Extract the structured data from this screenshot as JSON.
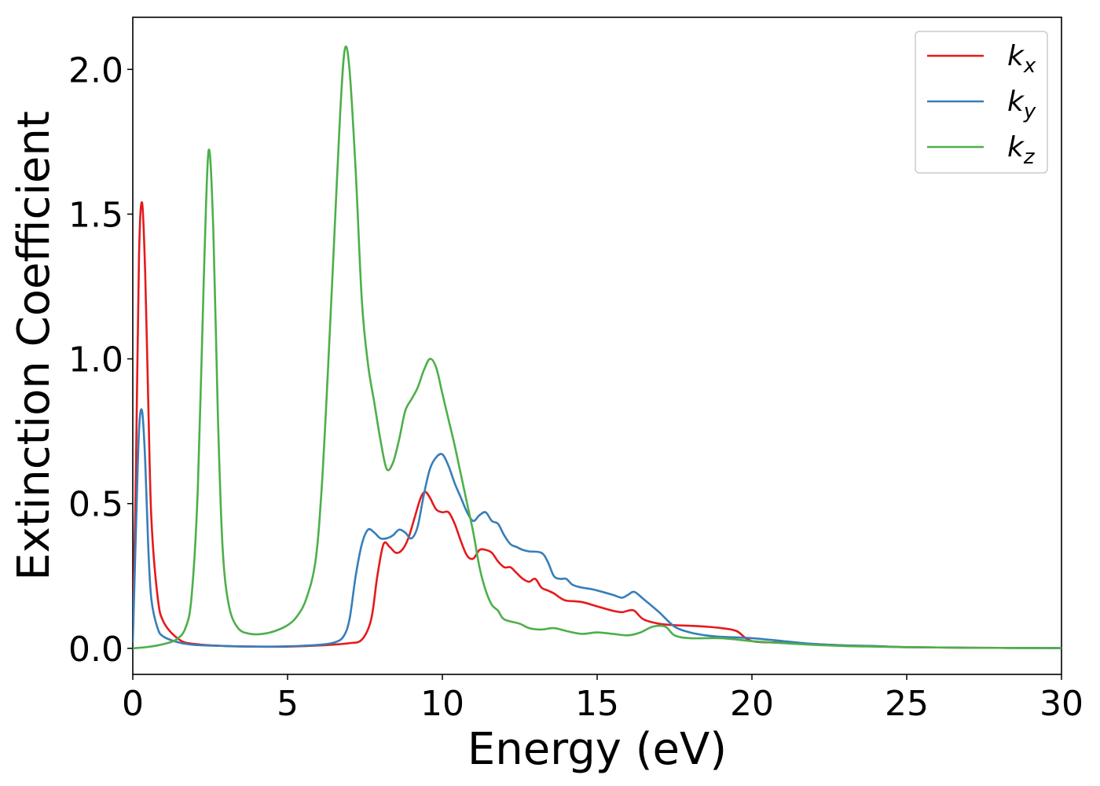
{
  "chart_data": {
    "type": "line",
    "xlabel": "Energy (eV)",
    "ylabel": "Extinction Coefficient",
    "xlim": [
      0,
      30
    ],
    "ylim": [
      -0.09,
      2.18
    ],
    "grid": false,
    "legend_position": "top-right",
    "x_ticks": [
      "0",
      "5",
      "10",
      "15",
      "20",
      "25",
      "30"
    ],
    "y_ticks": [
      "0.0",
      "0.5",
      "1.0",
      "1.5",
      "2.0"
    ],
    "series": [
      {
        "name": "k_x",
        "legend_main": "k",
        "legend_sub": "x",
        "color": "#e41a1c",
        "points": [
          [
            0,
            0.05
          ],
          [
            0.1,
            0.6
          ],
          [
            0.2,
            1.35
          ],
          [
            0.3,
            1.54
          ],
          [
            0.4,
            1.3
          ],
          [
            0.5,
            0.85
          ],
          [
            0.6,
            0.45
          ],
          [
            0.8,
            0.18
          ],
          [
            1.0,
            0.09
          ],
          [
            1.5,
            0.03
          ],
          [
            2.0,
            0.015
          ],
          [
            3.0,
            0.008
          ],
          [
            4.0,
            0.006
          ],
          [
            5.0,
            0.006
          ],
          [
            6.0,
            0.01
          ],
          [
            6.5,
            0.013
          ],
          [
            7.0,
            0.018
          ],
          [
            7.4,
            0.03
          ],
          [
            7.7,
            0.1
          ],
          [
            7.9,
            0.25
          ],
          [
            8.1,
            0.36
          ],
          [
            8.3,
            0.35
          ],
          [
            8.5,
            0.33
          ],
          [
            8.7,
            0.34
          ],
          [
            8.9,
            0.38
          ],
          [
            9.1,
            0.45
          ],
          [
            9.3,
            0.52
          ],
          [
            9.45,
            0.54
          ],
          [
            9.6,
            0.52
          ],
          [
            9.8,
            0.48
          ],
          [
            10.0,
            0.47
          ],
          [
            10.2,
            0.47
          ],
          [
            10.4,
            0.43
          ],
          [
            10.6,
            0.37
          ],
          [
            10.8,
            0.32
          ],
          [
            11.0,
            0.31
          ],
          [
            11.2,
            0.34
          ],
          [
            11.4,
            0.34
          ],
          [
            11.6,
            0.33
          ],
          [
            11.8,
            0.3
          ],
          [
            12.0,
            0.28
          ],
          [
            12.2,
            0.28
          ],
          [
            12.4,
            0.26
          ],
          [
            12.6,
            0.24
          ],
          [
            12.8,
            0.23
          ],
          [
            13.0,
            0.24
          ],
          [
            13.2,
            0.21
          ],
          [
            13.4,
            0.2
          ],
          [
            13.6,
            0.19
          ],
          [
            13.8,
            0.175
          ],
          [
            14.0,
            0.165
          ],
          [
            14.5,
            0.16
          ],
          [
            15.0,
            0.145
          ],
          [
            15.5,
            0.13
          ],
          [
            15.8,
            0.125
          ],
          [
            16.0,
            0.13
          ],
          [
            16.2,
            0.13
          ],
          [
            16.5,
            0.1
          ],
          [
            17.0,
            0.085
          ],
          [
            17.5,
            0.08
          ],
          [
            18.0,
            0.078
          ],
          [
            18.5,
            0.075
          ],
          [
            19.0,
            0.07
          ],
          [
            19.5,
            0.06
          ],
          [
            20.0,
            0.025
          ],
          [
            21.0,
            0.02
          ],
          [
            22.0,
            0.015
          ],
          [
            23.0,
            0.01
          ],
          [
            24.0,
            0.007
          ],
          [
            25.0,
            0.004
          ],
          [
            27.0,
            0.002
          ],
          [
            30.0,
            0.001
          ]
        ]
      },
      {
        "name": "k_y",
        "legend_main": "k",
        "legend_sub": "y",
        "color": "#377eb8",
        "points": [
          [
            0,
            0.02
          ],
          [
            0.1,
            0.4
          ],
          [
            0.2,
            0.75
          ],
          [
            0.3,
            0.82
          ],
          [
            0.4,
            0.65
          ],
          [
            0.5,
            0.35
          ],
          [
            0.6,
            0.17
          ],
          [
            0.8,
            0.07
          ],
          [
            1.0,
            0.04
          ],
          [
            1.5,
            0.02
          ],
          [
            2.0,
            0.012
          ],
          [
            3.0,
            0.008
          ],
          [
            4.0,
            0.006
          ],
          [
            5.0,
            0.007
          ],
          [
            6.0,
            0.012
          ],
          [
            6.5,
            0.02
          ],
          [
            6.8,
            0.04
          ],
          [
            7.0,
            0.1
          ],
          [
            7.2,
            0.25
          ],
          [
            7.4,
            0.36
          ],
          [
            7.6,
            0.41
          ],
          [
            7.8,
            0.4
          ],
          [
            8.0,
            0.38
          ],
          [
            8.2,
            0.38
          ],
          [
            8.4,
            0.39
          ],
          [
            8.6,
            0.41
          ],
          [
            8.8,
            0.4
          ],
          [
            9.0,
            0.38
          ],
          [
            9.2,
            0.42
          ],
          [
            9.4,
            0.53
          ],
          [
            9.6,
            0.62
          ],
          [
            9.8,
            0.66
          ],
          [
            10.0,
            0.67
          ],
          [
            10.2,
            0.63
          ],
          [
            10.4,
            0.57
          ],
          [
            10.6,
            0.52
          ],
          [
            10.8,
            0.47
          ],
          [
            11.0,
            0.44
          ],
          [
            11.2,
            0.46
          ],
          [
            11.4,
            0.47
          ],
          [
            11.6,
            0.44
          ],
          [
            11.8,
            0.43
          ],
          [
            12.0,
            0.39
          ],
          [
            12.2,
            0.36
          ],
          [
            12.4,
            0.35
          ],
          [
            12.6,
            0.34
          ],
          [
            12.8,
            0.335
          ],
          [
            13.2,
            0.33
          ],
          [
            13.4,
            0.3
          ],
          [
            13.6,
            0.25
          ],
          [
            13.8,
            0.24
          ],
          [
            14.0,
            0.24
          ],
          [
            14.2,
            0.22
          ],
          [
            14.5,
            0.21
          ],
          [
            14.8,
            0.205
          ],
          [
            15.0,
            0.2
          ],
          [
            15.5,
            0.185
          ],
          [
            15.8,
            0.175
          ],
          [
            16.0,
            0.185
          ],
          [
            16.2,
            0.195
          ],
          [
            16.5,
            0.17
          ],
          [
            17.0,
            0.125
          ],
          [
            17.5,
            0.075
          ],
          [
            18.0,
            0.055
          ],
          [
            18.5,
            0.045
          ],
          [
            19.0,
            0.04
          ],
          [
            20.0,
            0.035
          ],
          [
            21.0,
            0.025
          ],
          [
            22.0,
            0.015
          ],
          [
            23.0,
            0.01
          ],
          [
            24.0,
            0.008
          ],
          [
            25.0,
            0.004
          ],
          [
            27.0,
            0.002
          ],
          [
            30.0,
            0.001
          ]
        ]
      },
      {
        "name": "k_z",
        "legend_main": "k",
        "legend_sub": "z",
        "color": "#4daf4a",
        "points": [
          [
            0,
            0.0
          ],
          [
            0.5,
            0.005
          ],
          [
            1.0,
            0.015
          ],
          [
            1.4,
            0.03
          ],
          [
            1.7,
            0.07
          ],
          [
            1.9,
            0.18
          ],
          [
            2.1,
            0.55
          ],
          [
            2.3,
            1.3
          ],
          [
            2.45,
            1.72
          ],
          [
            2.6,
            1.45
          ],
          [
            2.75,
            0.8
          ],
          [
            2.9,
            0.35
          ],
          [
            3.1,
            0.15
          ],
          [
            3.4,
            0.07
          ],
          [
            3.8,
            0.05
          ],
          [
            4.2,
            0.05
          ],
          [
            4.6,
            0.06
          ],
          [
            5.0,
            0.08
          ],
          [
            5.3,
            0.11
          ],
          [
            5.6,
            0.17
          ],
          [
            5.9,
            0.3
          ],
          [
            6.1,
            0.55
          ],
          [
            6.3,
            0.95
          ],
          [
            6.5,
            1.4
          ],
          [
            6.7,
            1.85
          ],
          [
            6.85,
            2.07
          ],
          [
            7.0,
            2.0
          ],
          [
            7.2,
            1.65
          ],
          [
            7.4,
            1.2
          ],
          [
            7.6,
            0.98
          ],
          [
            7.8,
            0.85
          ],
          [
            8.0,
            0.72
          ],
          [
            8.2,
            0.62
          ],
          [
            8.4,
            0.64
          ],
          [
            8.6,
            0.72
          ],
          [
            8.8,
            0.82
          ],
          [
            9.0,
            0.86
          ],
          [
            9.2,
            0.9
          ],
          [
            9.4,
            0.96
          ],
          [
            9.6,
            1.0
          ],
          [
            9.8,
            0.97
          ],
          [
            10.0,
            0.88
          ],
          [
            10.2,
            0.79
          ],
          [
            10.4,
            0.7
          ],
          [
            10.6,
            0.6
          ],
          [
            10.8,
            0.5
          ],
          [
            11.0,
            0.4
          ],
          [
            11.2,
            0.28
          ],
          [
            11.4,
            0.2
          ],
          [
            11.6,
            0.15
          ],
          [
            11.8,
            0.13
          ],
          [
            12.0,
            0.1
          ],
          [
            12.5,
            0.085
          ],
          [
            12.8,
            0.07
          ],
          [
            13.2,
            0.065
          ],
          [
            13.6,
            0.07
          ],
          [
            14.0,
            0.06
          ],
          [
            14.5,
            0.05
          ],
          [
            15.0,
            0.055
          ],
          [
            15.5,
            0.05
          ],
          [
            16.0,
            0.045
          ],
          [
            16.4,
            0.055
          ],
          [
            16.8,
            0.075
          ],
          [
            17.2,
            0.075
          ],
          [
            17.5,
            0.045
          ],
          [
            18.0,
            0.035
          ],
          [
            19.0,
            0.035
          ],
          [
            20.0,
            0.025
          ],
          [
            21.0,
            0.018
          ],
          [
            22.0,
            0.012
          ],
          [
            23.0,
            0.008
          ],
          [
            24.0,
            0.006
          ],
          [
            25.0,
            0.004
          ],
          [
            27.0,
            0.002
          ],
          [
            30.0,
            0.001
          ]
        ]
      }
    ]
  }
}
